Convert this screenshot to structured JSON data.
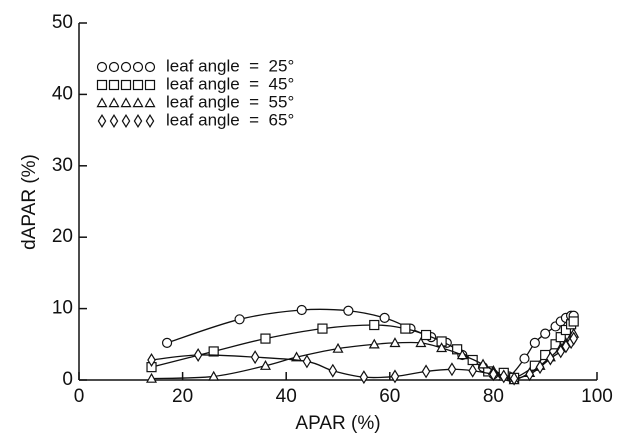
{
  "chart_data": {
    "type": "line",
    "xlabel": "APAR (%)",
    "ylabel": "dAPAR (%)",
    "xlim": [
      0,
      100
    ],
    "xticks": [
      0,
      20,
      40,
      60,
      80,
      100
    ],
    "ylim": [
      0,
      50
    ],
    "yticks": [
      0,
      10,
      20,
      30,
      40,
      50
    ],
    "color": "#111111",
    "series": [
      {
        "name": "leaf angle  =  25°",
        "marker": "circle",
        "x": [
          17,
          31,
          43,
          52,
          59,
          64,
          68,
          71,
          74,
          78,
          80,
          83,
          86,
          88,
          90,
          92,
          93,
          94,
          95,
          95.5
        ],
        "values": [
          5.2,
          8.5,
          9.8,
          9.7,
          8.7,
          7.2,
          6.0,
          5.2,
          3.5,
          1.8,
          0.8,
          0.5,
          3,
          5.2,
          6.5,
          7.5,
          8.2,
          8.7,
          9,
          9
        ]
      },
      {
        "name": "leaf angle  =  45°",
        "marker": "square",
        "x": [
          14,
          26,
          36,
          47,
          57,
          63,
          67,
          70,
          73,
          76,
          79,
          82,
          84,
          88,
          90,
          92,
          93,
          94,
          95,
          95.5
        ],
        "values": [
          1.8,
          4,
          5.8,
          7.2,
          7.7,
          7.2,
          6.3,
          5.4,
          4.3,
          2.8,
          1.2,
          1,
          0.3,
          2,
          3.5,
          5,
          6,
          7,
          7.8,
          8.2
        ]
      },
      {
        "name": "leaf angle  =  55°",
        "marker": "triangle",
        "x": [
          14,
          26,
          36,
          42,
          50,
          57,
          61,
          66,
          70,
          74,
          78,
          80,
          82,
          84,
          87,
          89,
          91,
          93,
          94,
          95,
          95.5
        ],
        "values": [
          0.2,
          0.5,
          2,
          3.2,
          4.4,
          5,
          5.2,
          5.2,
          4.5,
          3.5,
          2.2,
          1.3,
          0.5,
          0,
          1,
          2,
          3.2,
          4.5,
          5.2,
          6,
          6.5
        ]
      },
      {
        "name": "leaf angle  =  65°",
        "marker": "diamond",
        "x": [
          14,
          23,
          34,
          44,
          49,
          55,
          61,
          67,
          72,
          76,
          80,
          82,
          84,
          87,
          89,
          91,
          93,
          94,
          95,
          95.5
        ],
        "values": [
          2.8,
          3.5,
          3.2,
          2.6,
          1.3,
          0.4,
          0.5,
          1.2,
          1.5,
          1.3,
          0.8,
          0.5,
          0.2,
          0.8,
          1.8,
          3,
          4,
          4.7,
          5.3,
          5.8
        ]
      }
    ]
  }
}
